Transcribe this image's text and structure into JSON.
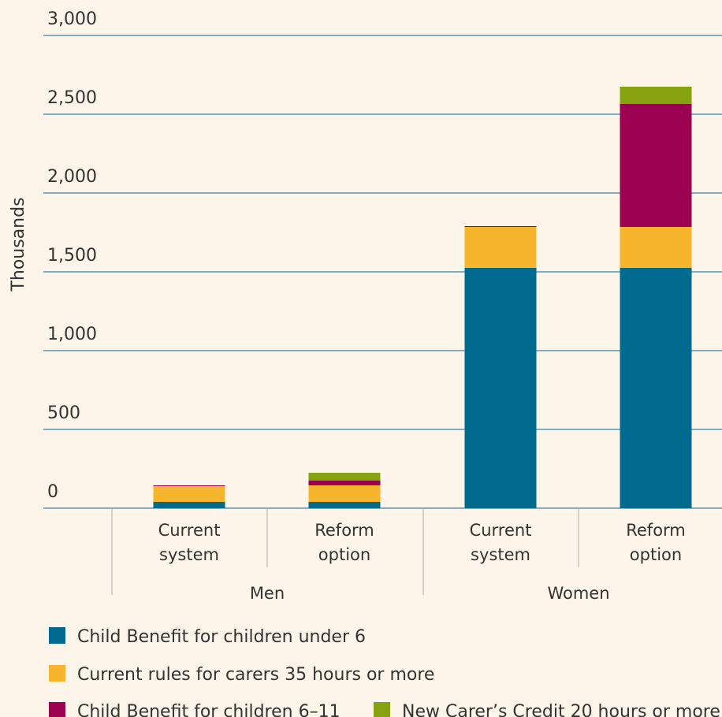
{
  "chart_data": {
    "type": "stacked_bar",
    "y_label": "Thousands",
    "categories": [
      "Current system",
      "Reform option",
      "Current system",
      "Reform option"
    ],
    "groups": [
      "Men",
      "Women"
    ],
    "series": [
      {
        "name": "Child Benefit for children under 6",
        "color": "#006a8e",
        "values": [
          40,
          40,
          1525,
          1525
        ]
      },
      {
        "name": "Current rules for carers 35 hours or more",
        "color": "#f7b52b",
        "values": [
          100,
          105,
          260,
          260
        ]
      },
      {
        "name": "Child Benefit for children 6–11",
        "color": "#9c0050",
        "values": [
          5,
          30,
          5,
          780
        ]
      },
      {
        "name": "New Carer’s Credit 20 hours or more",
        "color": "#86a30f",
        "values": [
          0,
          50,
          0,
          110
        ]
      }
    ],
    "ylim": [
      0,
      3000
    ],
    "yticks": [
      0,
      500,
      {
        "value": 1000,
        "label": "1,000"
      },
      {
        "value": 1500,
        "label": "1,500"
      },
      {
        "value": 2000,
        "label": "2,000"
      },
      {
        "value": 2500,
        "label": "2,500"
      },
      {
        "value": 3000,
        "label": "3,000"
      }
    ],
    "grid": true
  }
}
